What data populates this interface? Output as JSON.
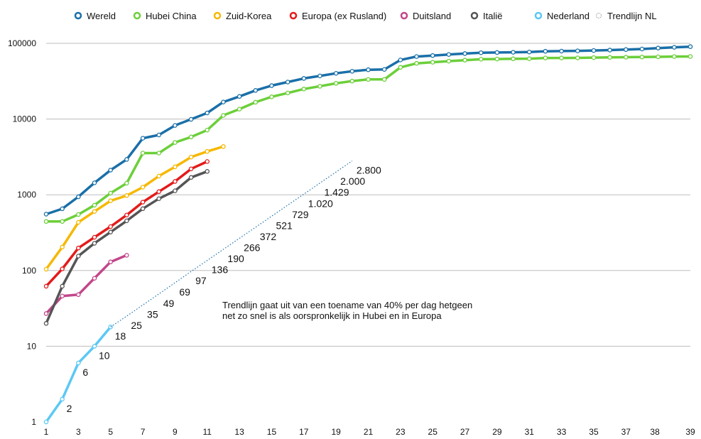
{
  "chart_data": {
    "type": "line",
    "scale": "log",
    "ylim": [
      1,
      100000
    ],
    "grid": true,
    "legend_placement": "top",
    "y_ticks": [
      "1",
      "10",
      "100",
      "1000",
      "10000",
      "100000"
    ],
    "x_ticks": [
      "1",
      "3",
      "5",
      "7",
      "9",
      "11",
      "13",
      "15",
      "17",
      "19",
      "21",
      "23",
      "25",
      "27",
      "29",
      "31",
      "33",
      "35",
      "37",
      "38",
      "39"
    ],
    "series": [
      {
        "name": "Wereld",
        "color": "#1a6fa8",
        "x": [
          1,
          2,
          3,
          4,
          5,
          6,
          7,
          8,
          9,
          10,
          11,
          12,
          13,
          14,
          15,
          16,
          17,
          18,
          19,
          20,
          21,
          22,
          23,
          24,
          25,
          26,
          27,
          28,
          29,
          30,
          31,
          32,
          33,
          34,
          35,
          36,
          37,
          38,
          39,
          40,
          41
        ],
        "values": [
          555,
          653,
          941,
          1438,
          2118,
          2930,
          5578,
          6166,
          8234,
          9925,
          12038,
          16787,
          19881,
          23892,
          27635,
          30817,
          34391,
          37120,
          40150,
          42762,
          44802,
          45221,
          60368,
          66885,
          69030,
          71224,
          73258,
          75136,
          75639,
          76197,
          76819,
          78572,
          78958,
          79561,
          80406,
          81388,
          82746,
          84112,
          86604,
          88585,
          90443
        ]
      },
      {
        "name": "Hubei China",
        "color": "#6ccf3a",
        "x": [
          1,
          2,
          3,
          4,
          5,
          6,
          7,
          8,
          9,
          10,
          11,
          12,
          13,
          14,
          15,
          16,
          17,
          18,
          19,
          20,
          21,
          22,
          23,
          24,
          25,
          26,
          27,
          28,
          29,
          30,
          31,
          32,
          33,
          34,
          35,
          36,
          37,
          38,
          39,
          40,
          41
        ],
        "values": [
          444,
          444,
          549,
          729,
          1052,
          1423,
          3554,
          3554,
          4903,
          5806,
          7153,
          11177,
          13522,
          16678,
          19665,
          22112,
          24953,
          27100,
          29631,
          31728,
          33366,
          33366,
          48206,
          54406,
          56249,
          58182,
          59989,
          61682,
          62031,
          62442,
          62662,
          64084,
          64084,
          64287,
          64786,
          65187,
          65596,
          65914,
          66337,
          66907,
          67103
        ]
      },
      {
        "name": "Zuid-Korea",
        "color": "#f5b800",
        "x": [
          1,
          2,
          3,
          4,
          5,
          6,
          7,
          8,
          9,
          10,
          11,
          12
        ],
        "values": [
          104,
          204,
          433,
          602,
          833,
          977,
          1261,
          1766,
          2337,
          3150,
          3736,
          4335
        ]
      },
      {
        "name": "Europa (ex Rusland)",
        "color": "#e31b1b",
        "x": [
          1,
          2,
          3,
          4,
          5,
          6,
          7,
          8,
          9,
          10,
          11
        ],
        "values": [
          62,
          105,
          198,
          275,
          380,
          540,
          800,
          1100,
          1500,
          2200,
          2750
        ]
      },
      {
        "name": "Duitsland",
        "color": "#c2468a",
        "x": [
          1,
          2,
          3,
          4,
          5,
          6
        ],
        "values": [
          27,
          46,
          48,
          79,
          130,
          159
        ]
      },
      {
        "name": "Italië",
        "color": "#555555",
        "x": [
          1,
          2,
          3,
          4,
          5,
          6,
          7,
          8,
          9,
          10,
          11
        ],
        "values": [
          20,
          62,
          155,
          229,
          322,
          453,
          655,
          888,
          1128,
          1694,
          2036
        ]
      },
      {
        "name": "Nederland",
        "color": "#5bc8f5",
        "x": [
          1,
          2,
          3,
          4,
          5
        ],
        "values": [
          1,
          2,
          6,
          10,
          18
        ]
      },
      {
        "name": "Trendlijn NL",
        "color": "#1a6fa8",
        "dotted": true,
        "x": [
          5,
          6,
          7,
          8,
          9,
          10,
          11,
          12,
          13,
          14,
          15,
          16,
          17,
          18,
          19,
          20
        ],
        "values": [
          18,
          25,
          35,
          49,
          69,
          97,
          136,
          190,
          266,
          372,
          521,
          729,
          1020,
          1429,
          2000,
          2800
        ]
      }
    ],
    "data_labels": [
      {
        "x": 2,
        "y": 2,
        "text": "2"
      },
      {
        "x": 3,
        "y": 6,
        "text": "6"
      },
      {
        "x": 4,
        "y": 10,
        "text": "10"
      },
      {
        "x": 5,
        "y": 18,
        "text": "18"
      },
      {
        "x": 6,
        "y": 25,
        "text": "25"
      },
      {
        "x": 7,
        "y": 35,
        "text": "35"
      },
      {
        "x": 8,
        "y": 49,
        "text": "49"
      },
      {
        "x": 9,
        "y": 69,
        "text": "69"
      },
      {
        "x": 10,
        "y": 97,
        "text": "97"
      },
      {
        "x": 11,
        "y": 136,
        "text": "136"
      },
      {
        "x": 12,
        "y": 190,
        "text": "190"
      },
      {
        "x": 13,
        "y": 266,
        "text": "266"
      },
      {
        "x": 14,
        "y": 372,
        "text": "372"
      },
      {
        "x": 15,
        "y": 521,
        "text": "521"
      },
      {
        "x": 16,
        "y": 729,
        "text": "729"
      },
      {
        "x": 17,
        "y": 1020,
        "text": "1.020"
      },
      {
        "x": 18,
        "y": 1429,
        "text": "1.429"
      },
      {
        "x": 19,
        "y": 2000,
        "text": "2.000"
      },
      {
        "x": 20,
        "y": 2800,
        "text": "2.800"
      }
    ],
    "annotation": [
      "Trendlijn gaat uit van een toename van 40% per dag hetgeen",
      "net zo snel is als oorspronkelijk in Hubei en in Europa"
    ]
  }
}
